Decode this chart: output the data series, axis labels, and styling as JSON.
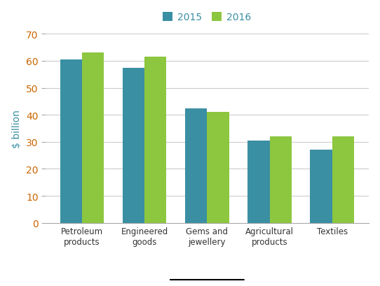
{
  "categories": [
    "Petroleum\nproducts",
    "Engineered\ngoods",
    "Gems and\njewellery",
    "Agricultural\nproducts",
    "Textiles"
  ],
  "values_2015": [
    60.5,
    57.5,
    42.5,
    30.5,
    27.0
  ],
  "values_2016": [
    63.0,
    61.5,
    41.0,
    32.0,
    32.0
  ],
  "color_2015": "#3a8fa3",
  "color_2016": "#8dc63f",
  "ylabel": "$ billion",
  "legend_labels": [
    "2015",
    "2016"
  ],
  "ylim": [
    0,
    70
  ],
  "yticks": [
    0,
    10,
    20,
    30,
    40,
    50,
    60,
    70
  ],
  "bar_width": 0.35,
  "ylabel_color": "#3a8fa3",
  "ytick_color": "#cc6600",
  "xtick_color": "#333333",
  "xlabel_color": "#333333",
  "legend_label_color": "#3a8fa3",
  "spine_color": "#aaaaaa",
  "grid_color": "#cccccc"
}
